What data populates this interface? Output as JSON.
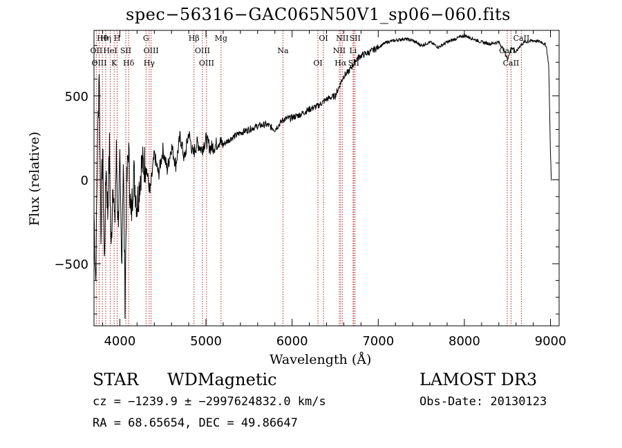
{
  "colors": {
    "axis": "#000000",
    "spectrum": "#000000",
    "line_marker": "#b22222",
    "background": "#ffffff"
  },
  "footer": {
    "class": "STAR",
    "subclass": "WDMagnetic",
    "survey": "LAMOST DR3",
    "cz": "cz = −1239.9 ± −2997624832.0 km/s",
    "obs_date": "Obs-Date: 20130123",
    "radec": "RA =  68.65654, DEC =  49.86647"
  },
  "chart_data": {
    "type": "line",
    "title": "spec−56316−GAC065N50V1_sp06−060.fits",
    "xlabel": "Wavelength (Å)",
    "ylabel": "Flux (relative)",
    "xlim": [
      3700,
      9100
    ],
    "ylim": [
      -870,
      890
    ],
    "x_ticks": [
      4000,
      5000,
      6000,
      7000,
      8000,
      9000
    ],
    "y_ticks": [
      -500,
      0,
      500
    ],
    "x_tick_labels": [
      "4000",
      "5000",
      "6000",
      "7000",
      "8000",
      "9000"
    ],
    "y_tick_labels": [
      "−500",
      "0",
      "500"
    ],
    "series": [
      {
        "name": "flux",
        "x": [
          3700,
          3720,
          3740,
          3760,
          3780,
          3800,
          3820,
          3840,
          3860,
          3880,
          3900,
          3920,
          3940,
          3960,
          3980,
          4000,
          4020,
          4040,
          4060,
          4080,
          4100,
          4130,
          4160,
          4200,
          4250,
          4300,
          4350,
          4400,
          4450,
          4500,
          4550,
          4600,
          4650,
          4700,
          4750,
          4800,
          4850,
          4900,
          4950,
          5000,
          5050,
          5100,
          5150,
          5200,
          5300,
          5400,
          5500,
          5600,
          5700,
          5800,
          5900,
          6000,
          6100,
          6200,
          6300,
          6400,
          6500,
          6550,
          6600,
          6650,
          6700,
          6750,
          6800,
          6900,
          7000,
          7100,
          7200,
          7300,
          7400,
          7500,
          7600,
          7700,
          7800,
          7900,
          8000,
          8100,
          8200,
          8300,
          8400,
          8450,
          8500,
          8550,
          8600,
          8650,
          8700,
          8800,
          8900,
          8950,
          8980,
          9000,
          9010
        ],
        "y": [
          -200,
          -600,
          150,
          700,
          -300,
          200,
          -500,
          100,
          -200,
          180,
          -450,
          50,
          -300,
          150,
          -250,
          60,
          -500,
          120,
          -700,
          -50,
          200,
          -250,
          50,
          -150,
          80,
          100,
          -80,
          150,
          30,
          180,
          60,
          200,
          90,
          260,
          120,
          280,
          150,
          220,
          180,
          240,
          190,
          200,
          230,
          210,
          250,
          280,
          300,
          320,
          330,
          300,
          360,
          370,
          390,
          420,
          440,
          480,
          500,
          560,
          620,
          640,
          680,
          720,
          740,
          760,
          790,
          820,
          830,
          840,
          830,
          800,
          820,
          790,
          820,
          840,
          860,
          840,
          820,
          810,
          820,
          780,
          720,
          790,
          760,
          800,
          820,
          830,
          820,
          800,
          680,
          150,
          -5
        ]
      }
    ],
    "line_labels": [
      {
        "label": "Hθ",
        "wavelength": 3798
      },
      {
        "label": "OII",
        "wavelength": 3727
      },
      {
        "label": "OIII",
        "wavelength": 3760
      },
      {
        "label": "Hη",
        "wavelength": 3836
      },
      {
        "label": "HeI",
        "wavelength": 3889
      },
      {
        "label": "K",
        "wavelength": 3934
      },
      {
        "label": "H",
        "wavelength": 3969
      },
      {
        "label": "SII",
        "wavelength": 4069
      },
      {
        "label": "Hδ",
        "wavelength": 4102
      },
      {
        "label": "G",
        "wavelength": 4304
      },
      {
        "label": "OIII",
        "wavelength": 4363
      },
      {
        "label": "Hγ",
        "wavelength": 4341
      },
      {
        "label": "Hβ",
        "wavelength": 4861
      },
      {
        "label": "OIII",
        "wavelength": 4959
      },
      {
        "label": "OIII",
        "wavelength": 5007
      },
      {
        "label": "Mg",
        "wavelength": 5175
      },
      {
        "label": "Na",
        "wavelength": 5894
      },
      {
        "label": "OI",
        "wavelength": 6300
      },
      {
        "label": "OI",
        "wavelength": 6364
      },
      {
        "label": "NII",
        "wavelength": 6548
      },
      {
        "label": "Hα",
        "wavelength": 6563
      },
      {
        "label": "NII",
        "wavelength": 6583
      },
      {
        "label": "Li",
        "wavelength": 6708
      },
      {
        "label": "SII",
        "wavelength": 6716
      },
      {
        "label": "SII",
        "wavelength": 6731
      },
      {
        "label": "CaII",
        "wavelength": 8498
      },
      {
        "label": "CaII",
        "wavelength": 8542
      },
      {
        "label": "CaII",
        "wavelength": 8662
      }
    ]
  }
}
